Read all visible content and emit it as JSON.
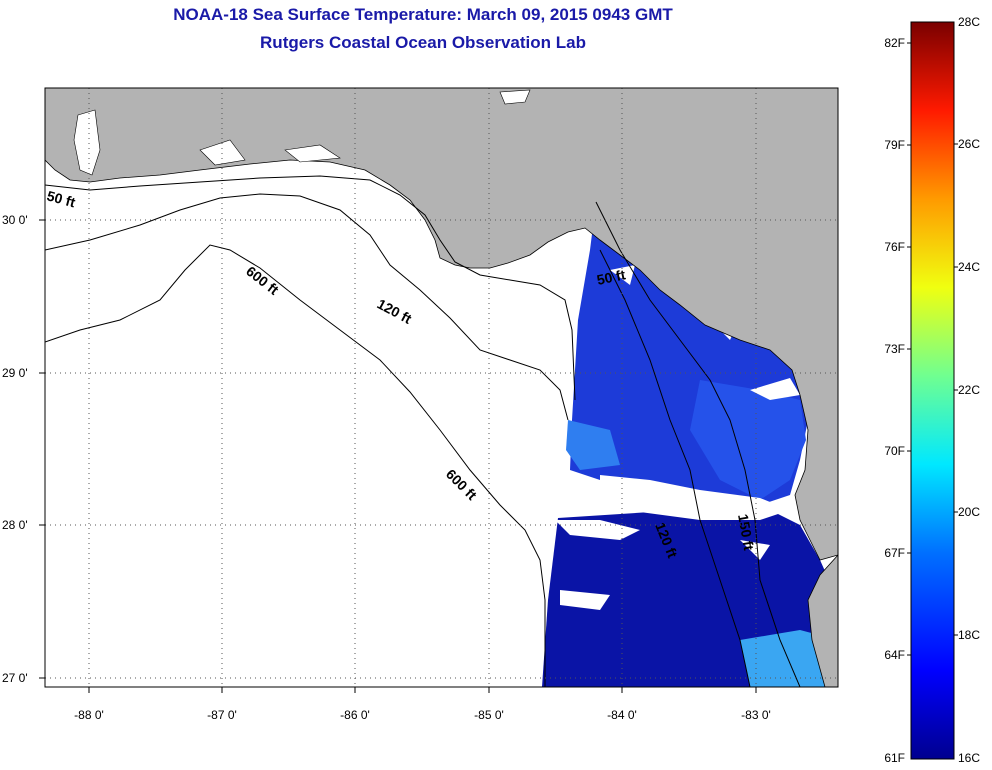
{
  "title": "NOAA-18 Sea Surface Temperature:  March 09, 2015 0943 GMT",
  "subtitle": "Rutgers Coastal Ocean Observation Lab",
  "map": {
    "lon_labels": [
      "-88 0'",
      "-87 0'",
      "-86 0'",
      "-85 0'",
      "-84 0'",
      "-83 0'"
    ],
    "lat_labels": [
      "30 0'",
      "29 0'",
      "28 0'",
      "27 0'"
    ],
    "contours": [
      {
        "label": "50 ft",
        "depth_ft": 50
      },
      {
        "label": "120 ft",
        "depth_ft": 120
      },
      {
        "label": "600 ft",
        "depth_ft": 600
      },
      {
        "label": "600 ft",
        "depth_ft": 600
      },
      {
        "label": "50 ft",
        "depth_ft": 50
      },
      {
        "label": "120 ft",
        "depth_ft": 120
      },
      {
        "label": "150 ft",
        "depth_ft": 150
      }
    ],
    "colors": {
      "land": "#b3b3b3",
      "water_no_data": "#ffffff",
      "sst_low": "#0a14a0",
      "sst_mid": "#1a3ee0",
      "sst_warm": "#3fa0f0"
    }
  },
  "colorbar": {
    "celsius_labels": [
      "28C",
      "26C",
      "24C",
      "22C",
      "20C",
      "18C",
      "16C"
    ],
    "fahrenheit_labels": [
      "82F",
      "79F",
      "76F",
      "73F",
      "70F",
      "67F",
      "64F",
      "61F"
    ],
    "range_c": [
      16,
      28
    ],
    "gradient": [
      "#00008f",
      "#0000ff",
      "#0080ff",
      "#00ffff",
      "#80ff80",
      "#ffff00",
      "#ff8000",
      "#ff0000",
      "#800000"
    ]
  }
}
